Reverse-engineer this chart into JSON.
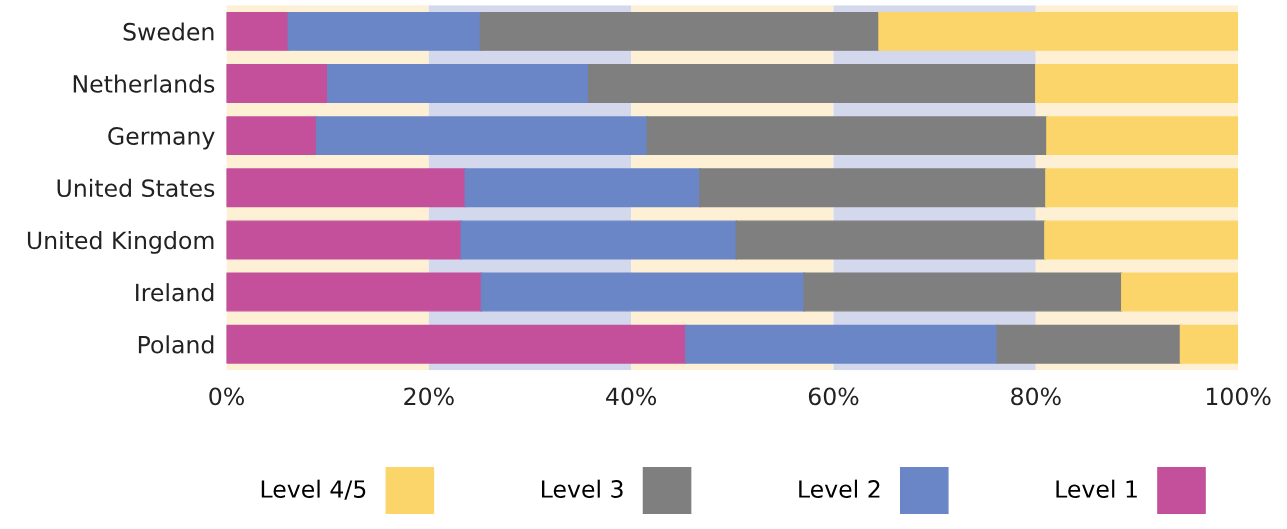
{
  "chart_data": {
    "type": "bar",
    "orientation": "horizontal",
    "stacked": true,
    "categories": [
      "Sweden",
      "Netherlands",
      "Germany",
      "United States",
      "United Kingdom",
      "Ireland",
      "Poland"
    ],
    "series": [
      {
        "name": "Level 1",
        "color": "#c4509c",
        "values": [
          6.1,
          10.0,
          8.9,
          23.6,
          23.2,
          25.2,
          45.4
        ]
      },
      {
        "name": "Level 2",
        "color": "#6a86c6",
        "values": [
          19.0,
          25.8,
          32.7,
          23.2,
          27.2,
          31.9,
          30.8
        ]
      },
      {
        "name": "Level 3",
        "color": "#7f7f7f",
        "values": [
          39.4,
          44.2,
          39.5,
          34.2,
          30.5,
          31.4,
          18.1
        ]
      },
      {
        "name": "Level 4/5",
        "color": "#fcd56a",
        "values": [
          35.5,
          20.0,
          18.9,
          19.0,
          19.1,
          11.5,
          5.7
        ]
      }
    ],
    "xlim": [
      0,
      100
    ],
    "xticks": [
      {
        "value": 0,
        "label": "0%"
      },
      {
        "value": 20,
        "label": "20%"
      },
      {
        "value": 40,
        "label": "40%"
      },
      {
        "value": 60,
        "label": "60%"
      },
      {
        "value": 80,
        "label": "80%"
      },
      {
        "value": 100,
        "label": "100%"
      }
    ],
    "bands": [
      {
        "axis": "x",
        "from": 0,
        "to": 20,
        "color": "#fdf0d5"
      },
      {
        "axis": "x",
        "from": 20,
        "to": 40,
        "color": "#d3d8ec"
      },
      {
        "axis": "x",
        "from": 40,
        "to": 60,
        "color": "#fdf0d5"
      },
      {
        "axis": "x",
        "from": 60,
        "to": 80,
        "color": "#d3d8ec"
      },
      {
        "axis": "x",
        "from": 80,
        "to": 100,
        "color": "#fdf0d5"
      }
    ],
    "legend": "bottom",
    "grid": false
  }
}
